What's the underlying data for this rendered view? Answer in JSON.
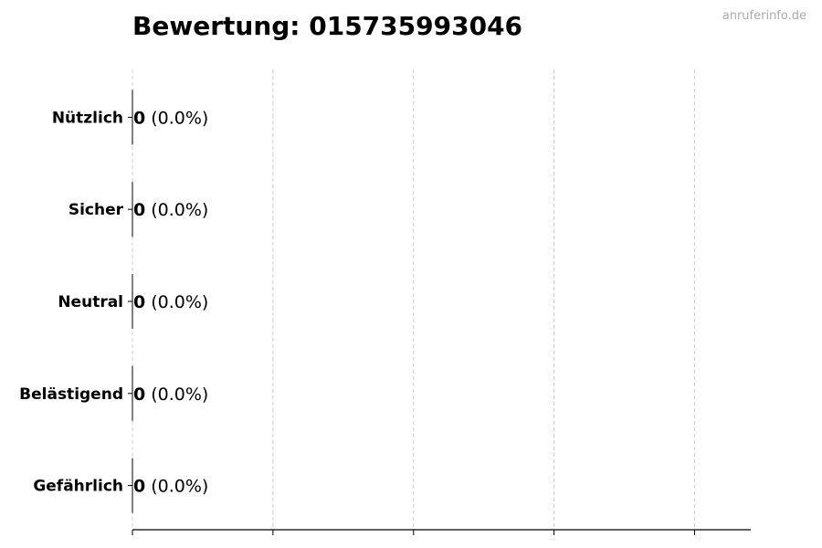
{
  "chart_data": {
    "type": "bar",
    "orientation": "horizontal",
    "title": "Bewertung: 015735993046",
    "watermark": "anruferinfo.de",
    "categories": [
      "Nützlich",
      "Sicher",
      "Neutral",
      "Belästigend",
      "Gefährlich"
    ],
    "values": [
      0,
      0,
      0,
      0,
      0
    ],
    "value_labels": [
      "0",
      "0",
      "0",
      "0",
      "0"
    ],
    "percent_labels": [
      "(0.0%)",
      "(0.0%)",
      "(0.0%)",
      "(0.0%)",
      "(0.0%)"
    ],
    "xlabel": "",
    "ylabel": "",
    "x_ticks": [
      0,
      0.2,
      0.4,
      0.6,
      0.8
    ],
    "xlim": [
      0,
      0.88
    ],
    "x_tick_labels_shown": false,
    "grid": "vertical dashed",
    "colors": {
      "bar_edge": "#000000",
      "grid": "#cccccc",
      "bars": [
        "#4caf50",
        "#2196f3",
        "#9e9e9e",
        "#ff9800",
        "#f44336"
      ]
    }
  }
}
